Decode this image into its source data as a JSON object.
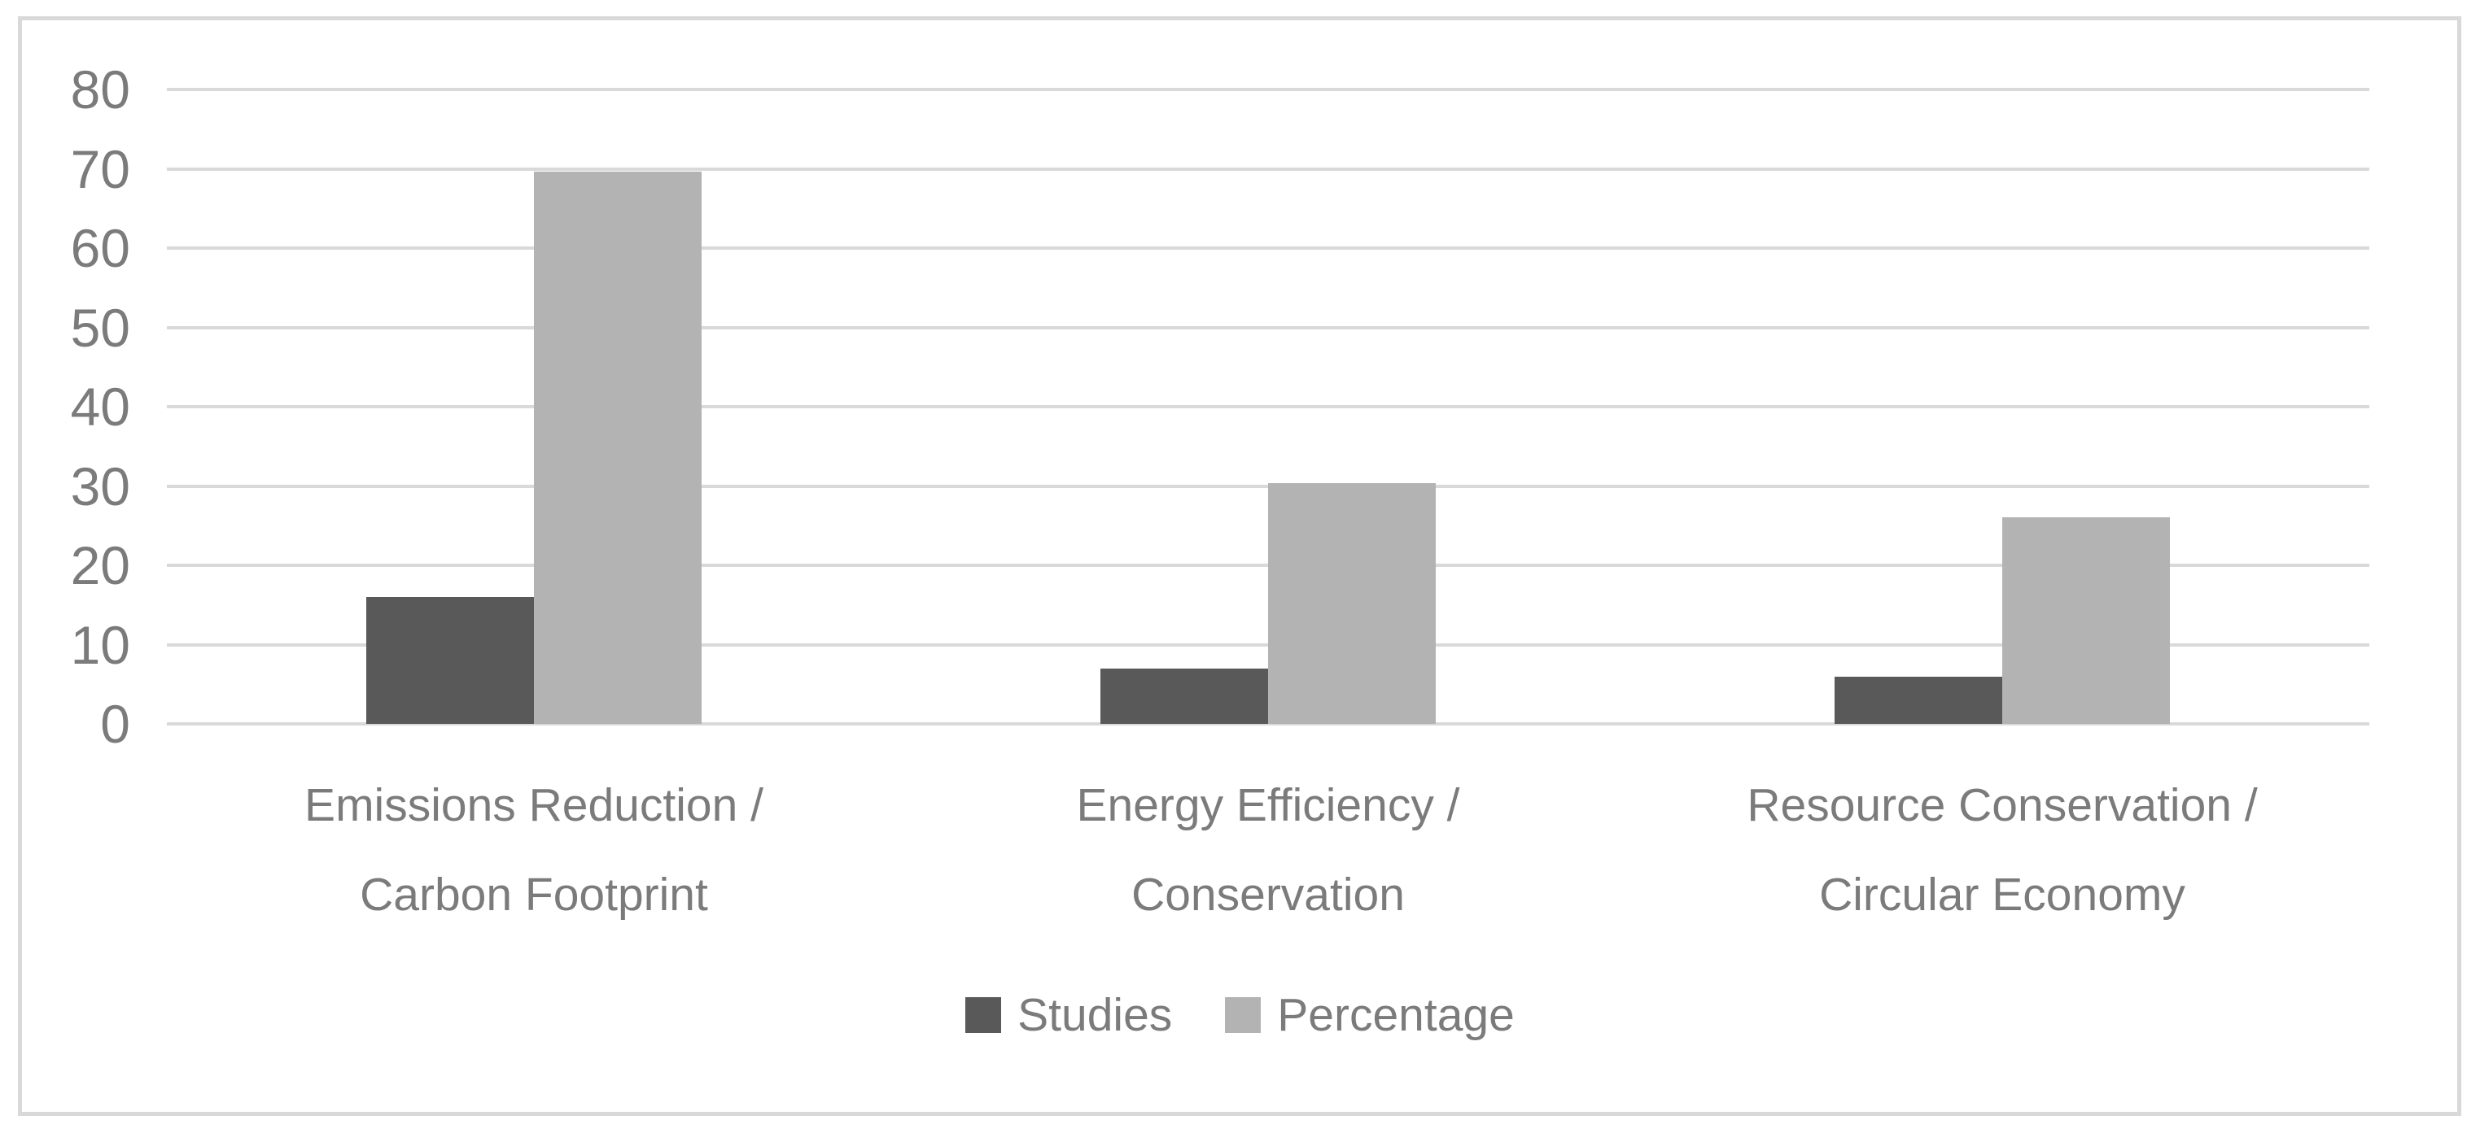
{
  "figure": {
    "frame_border_color": "#d9d9d9",
    "background_color": "#ffffff",
    "axis_text_color": "#7b7b7b"
  },
  "chart_data": {
    "type": "bar",
    "title": "",
    "xlabel": "",
    "ylabel": "",
    "categories": [
      "Emissions Reduction / Carbon Footprint",
      "Energy Efficiency / Conservation",
      "Resource Conservation / Circular Economy"
    ],
    "category_label_lines": [
      [
        "Emissions Reduction /",
        "Carbon Footprint"
      ],
      [
        "Energy Efficiency /",
        "Conservation"
      ],
      [
        "Resource Conservation /",
        "Circular Economy"
      ]
    ],
    "series": [
      {
        "name": "Studies",
        "values": [
          16,
          7,
          6
        ],
        "color": "#595959"
      },
      {
        "name": "Percentage",
        "values": [
          69.6,
          30.4,
          26.1
        ],
        "color": "#b3b3b3"
      }
    ],
    "ylim": [
      0,
      80
    ],
    "yticks": [
      0,
      10,
      20,
      30,
      40,
      50,
      60,
      70,
      80
    ],
    "grid": "horizontal",
    "gridline_color": "#d9d9d9",
    "legend_position": "bottom"
  }
}
